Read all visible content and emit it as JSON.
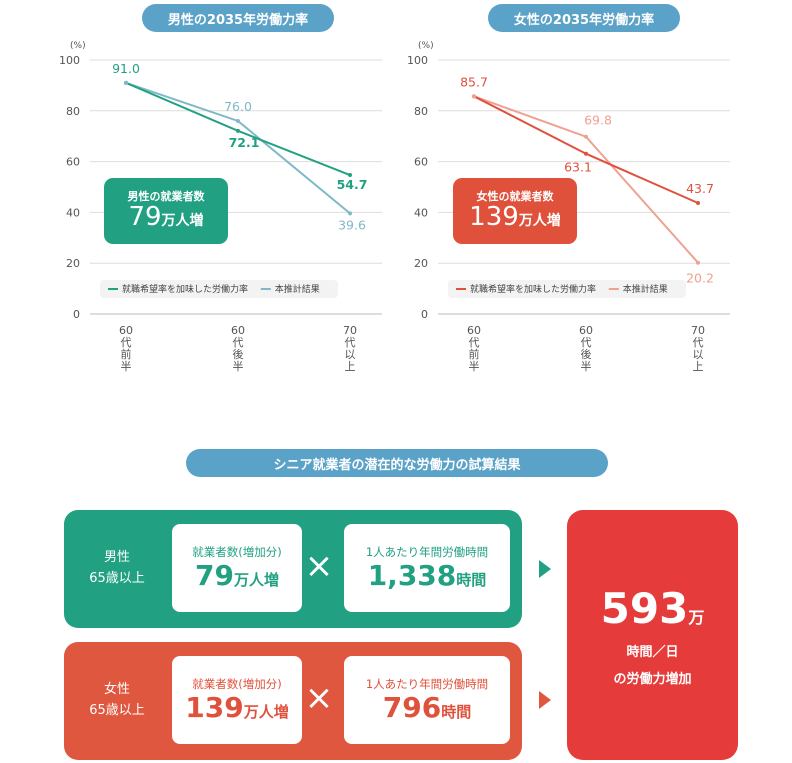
{
  "chart_data": [
    {
      "type": "line",
      "title": "男性の2035年労働力率",
      "unit": "(%)",
      "ylim": [
        0,
        100
      ],
      "yticks": [
        0,
        20,
        40,
        60,
        80,
        100
      ],
      "categories": [
        "60代前半",
        "60代後半",
        "70代以上"
      ],
      "series": [
        {
          "name": "就職希望率を加味した労働力率",
          "values": [
            91.0,
            72.1,
            54.7
          ],
          "labels": [
            "91.0",
            "72.1",
            "54.7"
          ],
          "color": "#21a182"
        },
        {
          "name": "本推計結果",
          "values": [
            91.0,
            76.0,
            39.6
          ],
          "labels": [
            "",
            "76.0",
            "39.6"
          ],
          "color": "#7fb9c7"
        }
      ],
      "badge": {
        "title": "男性の就業者数",
        "value": "79",
        "unit": "万人増",
        "color": "#21a182"
      }
    },
    {
      "type": "line",
      "title": "女性の2035年労働力率",
      "unit": "(%)",
      "ylim": [
        0,
        100
      ],
      "yticks": [
        0,
        20,
        40,
        60,
        80,
        100
      ],
      "categories": [
        "60代前半",
        "60代後半",
        "70代以上"
      ],
      "series": [
        {
          "name": "就職希望率を加味した労働力率",
          "values": [
            85.7,
            63.1,
            43.7
          ],
          "labels": [
            "85.7",
            "63.1",
            "43.7"
          ],
          "color": "#e0513b"
        },
        {
          "name": "本推計結果",
          "values": [
            85.7,
            69.8,
            20.2
          ],
          "labels": [
            "",
            "69.8",
            "20.2"
          ],
          "color": "#efa192"
        }
      ],
      "badge": {
        "title": "女性の就業者数",
        "value": "139",
        "unit": "万人増",
        "color": "#e0513b"
      }
    }
  ],
  "calc": {
    "title": "シニア就業者の潜在的な労働力の試算結果",
    "male": {
      "label1": "男性",
      "label2": "65歳以上",
      "card1_title": "就業者数(増加分)",
      "card1_value": "79",
      "card1_unit": "万人増",
      "times": "×",
      "card2_title": "1人あたり年間労働時間",
      "card2_value": "1,338",
      "card2_unit": "時間",
      "color": "#21a182"
    },
    "female": {
      "label1": "女性",
      "label2": "65歳以上",
      "card1_title": "就業者数(増加分)",
      "card1_value": "139",
      "card1_unit": "万人増",
      "times": "×",
      "card2_title": "1人あたり年間労働時間",
      "card2_value": "796",
      "card2_unit": "時間",
      "color": "#e0573f"
    },
    "result": {
      "value": "593",
      "unit": "万",
      "line1": "時間／日",
      "line2": "の労働力増加",
      "color": "#e63b3b"
    }
  }
}
